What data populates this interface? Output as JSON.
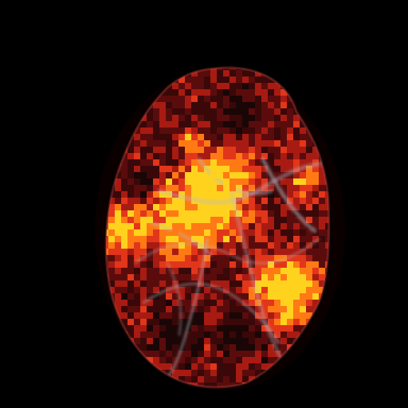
{
  "image": {
    "kind": "fluorescence-microscopy-overlay",
    "colors": {
      "background": "#000000",
      "cell_base": "#5a0c0c",
      "cell_mid": "#a81b12",
      "cell_hot": "#e2361a",
      "hotspot_orange": "#ff7a14",
      "hotspot_yellow": "#ffd21e",
      "filament": "#b9b9c4",
      "nucleus_dark": "#1a0606"
    }
  }
}
